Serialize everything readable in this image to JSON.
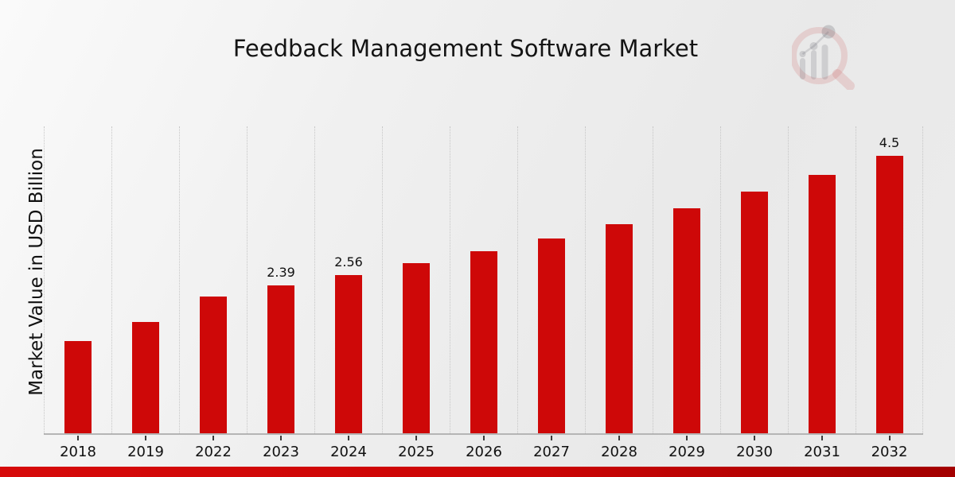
{
  "title": "Feedback Management Software Market",
  "ylabel": "Market Value in USD Billion",
  "logo": {
    "icon": "magnifier-bar-chart-logo"
  },
  "colors": {
    "bar": "#ce0808",
    "footer_band_left": "#d60a0a",
    "footer_band_right": "#a30000",
    "gridline": "#c6c6c6",
    "axis_line": "#b5b5b5",
    "text": "#111111"
  },
  "chart_data": {
    "type": "bar",
    "title": "Feedback Management Software Market",
    "xlabel": "",
    "ylabel": "Market Value in USD Billion",
    "categories": [
      "2018",
      "2019",
      "2022",
      "2023",
      "2024",
      "2025",
      "2026",
      "2027",
      "2028",
      "2029",
      "2030",
      "2031",
      "2032"
    ],
    "values": [
      1.5,
      1.8,
      2.22,
      2.39,
      2.56,
      2.75,
      2.95,
      3.16,
      3.39,
      3.64,
      3.91,
      4.19,
      4.5
    ],
    "bar_labels": [
      "",
      "",
      "",
      "2.39",
      "2.56",
      "",
      "",
      "",
      "",
      "",
      "",
      "",
      "4.5"
    ],
    "ylim": [
      0,
      4.97
    ],
    "grid": "vertical-dotted-category-boundaries",
    "legend": "none",
    "bar_color": "#ce0808"
  }
}
